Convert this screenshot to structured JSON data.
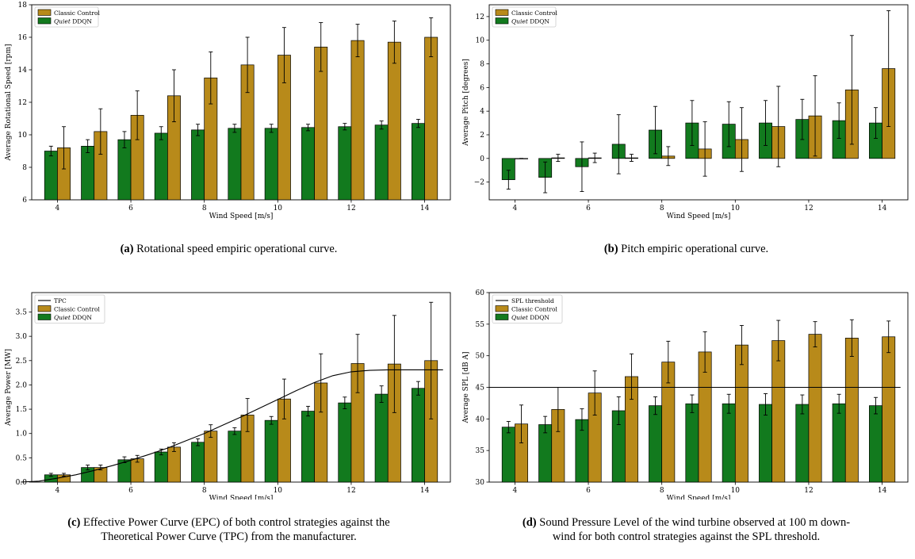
{
  "chart_data": [
    {
      "type": "bar",
      "caption_label": "(a)",
      "caption_text": "Rotational speed empiric operational curve.",
      "xlabel": "Wind Speed [m/s]",
      "ylabel": "Average Rotational Speed [rpm]",
      "x": [
        4,
        5,
        6,
        7,
        8,
        9,
        10,
        11,
        12,
        13,
        14
      ],
      "xticks": [
        4,
        6,
        8,
        10,
        12,
        14
      ],
      "ylim": [
        6,
        18
      ],
      "yticks": [
        6,
        8,
        10,
        12,
        14,
        16,
        18
      ],
      "legend_position": "top-left",
      "line": null,
      "series": [
        {
          "name": "Quiet DDQN",
          "name_italic": "Quiet",
          "name_rest": " DDQN",
          "color": "#127a1e",
          "values": [
            9.0,
            9.3,
            9.7,
            10.1,
            10.3,
            10.4,
            10.4,
            10.45,
            10.5,
            10.6,
            10.7
          ],
          "err": [
            0.3,
            0.4,
            0.5,
            0.4,
            0.35,
            0.25,
            0.25,
            0.2,
            0.2,
            0.25,
            0.25
          ]
        },
        {
          "name": "Classic Control",
          "name_italic": "",
          "name_rest": "Classic Control",
          "color": "#b88a1a",
          "values": [
            9.2,
            10.2,
            11.2,
            12.4,
            13.5,
            14.3,
            14.9,
            15.4,
            15.8,
            15.7,
            16.0
          ],
          "err": [
            1.3,
            1.4,
            1.5,
            1.6,
            1.6,
            1.7,
            1.7,
            1.5,
            1.0,
            1.3,
            1.2
          ]
        }
      ]
    },
    {
      "type": "bar",
      "caption_label": "(b)",
      "caption_text": "Pitch empiric operational curve.",
      "xlabel": "Wind Speed [m/s]",
      "ylabel": "Average Pitch [degrees]",
      "x": [
        4,
        5,
        6,
        7,
        8,
        9,
        10,
        11,
        12,
        13,
        14
      ],
      "xticks": [
        4,
        6,
        8,
        10,
        12,
        14
      ],
      "ylim": [
        -3.5,
        13
      ],
      "yticks": [
        -2,
        0,
        2,
        4,
        6,
        8,
        10,
        12
      ],
      "yticklabels": [
        "−2",
        "0",
        "2",
        "4",
        "6",
        "8",
        "10",
        "12"
      ],
      "legend_position": "top-left",
      "line": null,
      "series": [
        {
          "name": "Quiet DDQN",
          "name_italic": "Quiet",
          "name_rest": " DDQN",
          "color": "#127a1e",
          "values": [
            -1.8,
            -1.6,
            -0.7,
            1.2,
            2.4,
            3.0,
            2.9,
            3.0,
            3.3,
            3.2,
            3.0
          ],
          "err": [
            0.8,
            1.3,
            2.1,
            2.5,
            2.0,
            1.9,
            1.9,
            1.9,
            1.7,
            1.5,
            1.3
          ]
        },
        {
          "name": "Classic Control",
          "name_italic": "",
          "name_rest": "Classic Control",
          "color": "#b88a1a",
          "values": [
            0.0,
            0.05,
            0.05,
            0.05,
            0.2,
            0.8,
            1.6,
            2.7,
            3.6,
            5.8,
            7.6
          ],
          "err": [
            0.0,
            0.3,
            0.4,
            0.3,
            0.8,
            2.3,
            2.7,
            3.4,
            3.4,
            4.6,
            4.9
          ]
        }
      ]
    },
    {
      "type": "bar",
      "caption_label": "(c)",
      "caption_text": "Effective Power Curve (EPC) of both control strategies against the Theoretical Power Curve (TPC) from the manufacturer.",
      "caption_line1": "Effective Power Curve (EPC) of both control strategies against the",
      "caption_line2": "Theoretical Power Curve (TPC) from the manufacturer.",
      "xlabel": "Wind Speed [m/s]",
      "ylabel": "Average Power [MW]",
      "x": [
        4,
        5,
        6,
        7,
        8,
        9,
        10,
        11,
        12,
        13,
        14
      ],
      "xticks": [
        4,
        6,
        8,
        10,
        12,
        14
      ],
      "ylim": [
        0,
        3.9
      ],
      "yticks": [
        0.0,
        0.5,
        1.0,
        1.5,
        2.0,
        2.5,
        3.0,
        3.5
      ],
      "yticklabels": [
        "0.0",
        "0.5",
        "1.0",
        "1.5",
        "2.0",
        "2.5",
        "3.0",
        "3.5"
      ],
      "legend_position": "top-left",
      "line": {
        "name": "TPC",
        "color": "#000000",
        "x": [
          3,
          3.5,
          4,
          4.5,
          5,
          5.5,
          6,
          6.5,
          7,
          7.5,
          8,
          8.5,
          9,
          9.5,
          10,
          10.5,
          11,
          11.5,
          12,
          12.5,
          13,
          13.5,
          14,
          14.5
        ],
        "y": [
          0.0,
          0.02,
          0.08,
          0.15,
          0.24,
          0.34,
          0.45,
          0.57,
          0.7,
          0.85,
          1.0,
          1.17,
          1.34,
          1.52,
          1.7,
          1.88,
          2.05,
          2.19,
          2.27,
          2.3,
          2.31,
          2.31,
          2.31,
          2.31
        ]
      },
      "series": [
        {
          "name": "Quiet DDQN",
          "name_italic": "Quiet",
          "name_rest": " DDQN",
          "color": "#127a1e",
          "values": [
            0.15,
            0.3,
            0.46,
            0.62,
            0.82,
            1.05,
            1.27,
            1.46,
            1.63,
            1.81,
            1.93
          ],
          "err": [
            0.03,
            0.05,
            0.06,
            0.06,
            0.07,
            0.07,
            0.08,
            0.1,
            0.12,
            0.17,
            0.14
          ]
        },
        {
          "name": "Classic Control",
          "name_italic": "",
          "name_rest": "Classic Control",
          "color": "#b88a1a",
          "values": [
            0.15,
            0.3,
            0.48,
            0.72,
            1.05,
            1.38,
            1.71,
            2.04,
            2.44,
            2.43,
            2.5
          ],
          "err": [
            0.03,
            0.05,
            0.07,
            0.09,
            0.13,
            0.34,
            0.41,
            0.6,
            0.6,
            1.0,
            1.2
          ]
        }
      ]
    },
    {
      "type": "bar",
      "caption_label": "(d)",
      "caption_text": "Sound Pressure Level of the wind turbine observed at 100 m downwind for both control strategies against the SPL threshold.",
      "caption_line1": "Sound Pressure Level of the wind turbine observed at 100 m down-",
      "caption_line2": "wind for both control strategies against the SPL threshold.",
      "xlabel": "Wind Speed [m/s]",
      "ylabel": "Average SPL [dB A]",
      "x": [
        4,
        5,
        6,
        7,
        8,
        9,
        10,
        11,
        12,
        13,
        14
      ],
      "xticks": [
        4,
        6,
        8,
        10,
        12,
        14
      ],
      "ylim": [
        30,
        60
      ],
      "yticks": [
        30,
        35,
        40,
        45,
        50,
        55,
        60
      ],
      "legend_position": "top-left",
      "line": {
        "name": "SPL threshold",
        "color": "#000000",
        "x": [
          3.3,
          14.5
        ],
        "y": [
          45,
          45
        ]
      },
      "series": [
        {
          "name": "Quiet DDQN",
          "name_italic": "Quiet",
          "name_rest": " DDQN",
          "color": "#127a1e",
          "values": [
            38.7,
            39.1,
            39.9,
            41.3,
            42.1,
            42.4,
            42.4,
            42.3,
            42.3,
            42.4,
            42.1
          ],
          "err": [
            0.9,
            1.3,
            1.7,
            2.2,
            1.4,
            1.4,
            1.5,
            1.7,
            1.5,
            1.5,
            1.3
          ]
        },
        {
          "name": "Classic Control",
          "name_italic": "",
          "name_rest": "Classic Control",
          "color": "#b88a1a",
          "values": [
            39.2,
            41.5,
            44.1,
            46.7,
            49.0,
            50.6,
            51.7,
            52.4,
            53.4,
            52.8,
            53.0
          ],
          "err": [
            3.0,
            3.5,
            3.5,
            3.6,
            3.3,
            3.2,
            3.1,
            3.2,
            2.0,
            2.9,
            2.5
          ]
        }
      ]
    }
  ]
}
